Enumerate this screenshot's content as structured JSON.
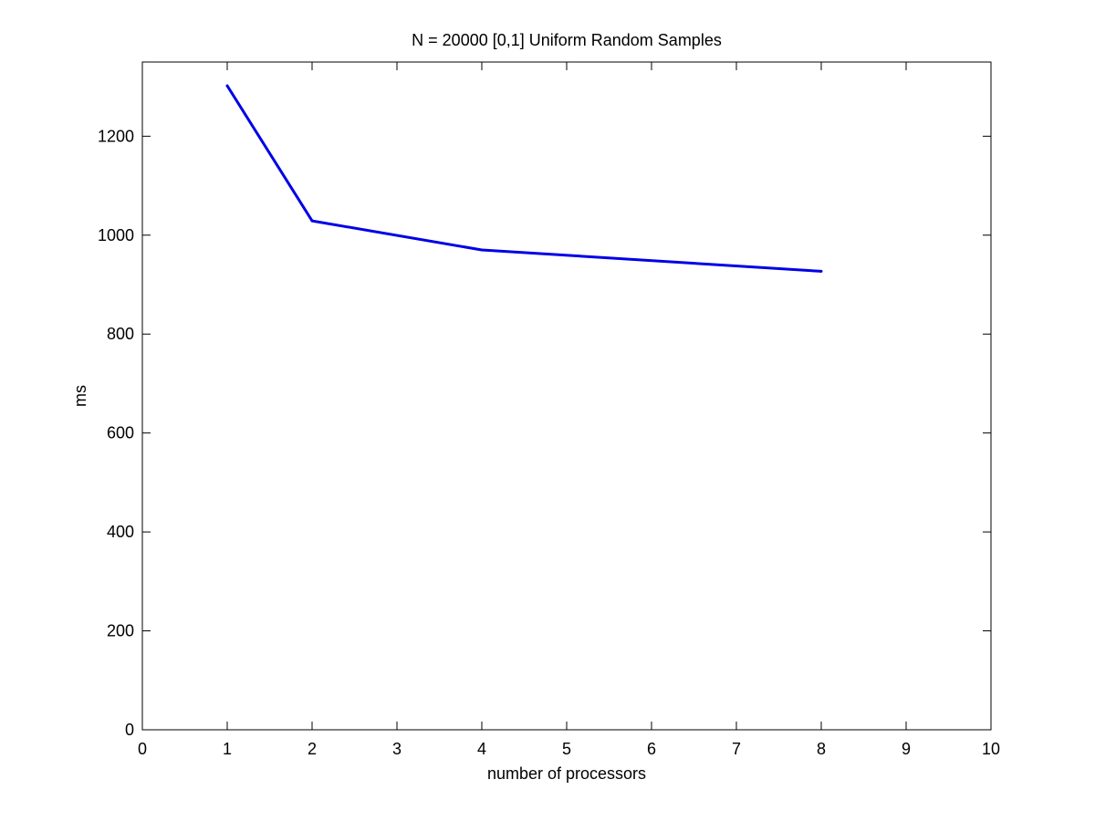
{
  "chart_data": {
    "type": "line",
    "title": "N = 20000  [0,1] Uniform Random Samples",
    "xlabel": "number of processors",
    "ylabel": "ms",
    "xlim": [
      0,
      10
    ],
    "ylim": [
      0,
      1350
    ],
    "xticks": [
      0,
      1,
      2,
      3,
      4,
      5,
      6,
      7,
      8,
      9,
      10
    ],
    "yticks": [
      0,
      200,
      400,
      600,
      800,
      1000,
      1200
    ],
    "grid": false,
    "series": [
      {
        "color": "#0000e6",
        "x": [
          1,
          2,
          4,
          8
        ],
        "y": [
          1302,
          1029,
          970,
          927
        ]
      }
    ]
  }
}
